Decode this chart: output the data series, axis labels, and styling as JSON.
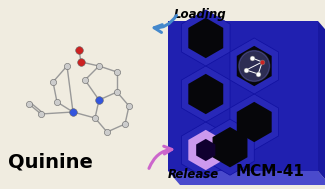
{
  "bg_color": "#f0ece0",
  "title": "Quinine",
  "title_fontsize": 14,
  "mcm41_label": "MCM-41",
  "mcm41_fontsize": 11,
  "loading_label": "Loading",
  "release_label": "Release",
  "arrow_loading_color": "#cc66cc",
  "arrow_release_color": "#4488cc",
  "hex_outer_color": "#2222aa",
  "hex_inner_color": "#1111660",
  "hex_highlight_color": "#cc99ee",
  "body_color": "#2222bb",
  "body_top_color": "#4444cc",
  "body_right_color": "#1a1a88"
}
